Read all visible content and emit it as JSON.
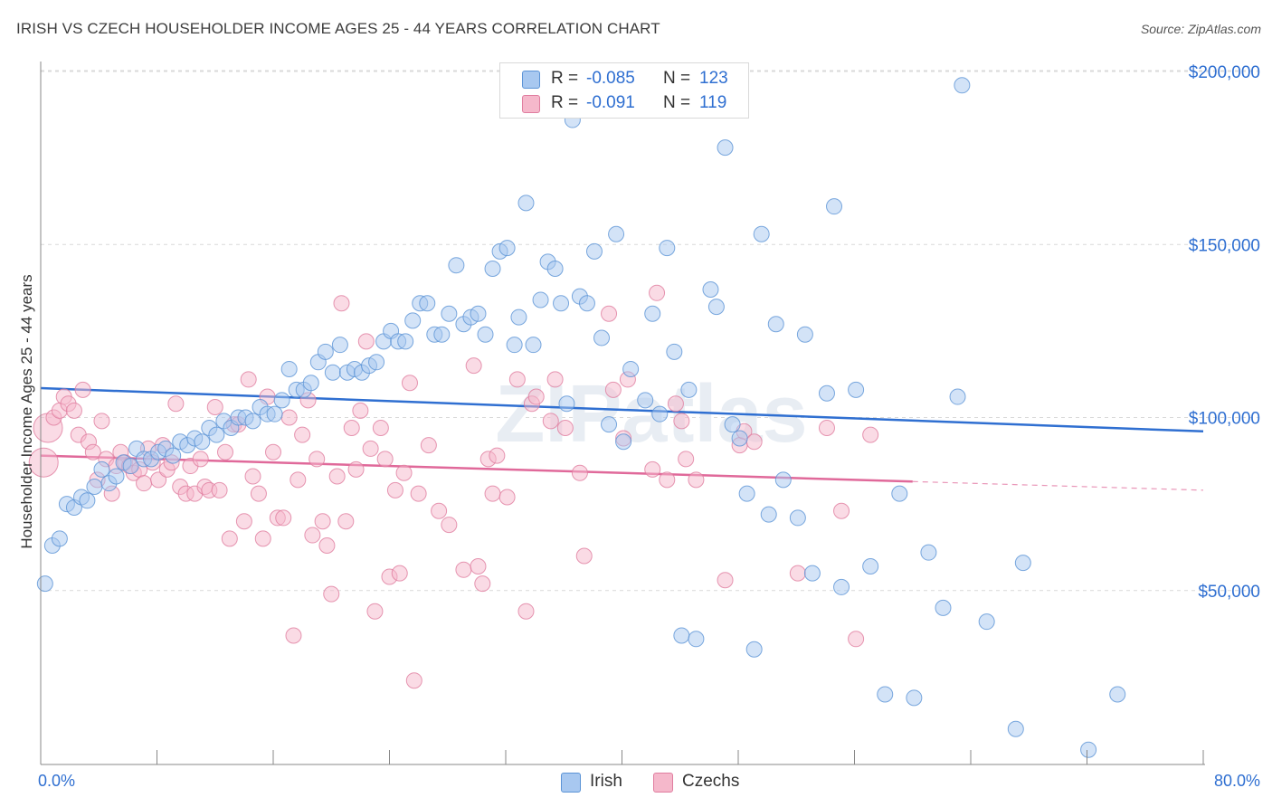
{
  "title": "IRISH VS CZECH HOUSEHOLDER INCOME AGES 25 - 44 YEARS CORRELATION CHART",
  "source": "Source: ZipAtlas.com",
  "watermark": "ZIPatlas",
  "legend_top": {
    "rows": [
      {
        "r_label": "R =",
        "r_value": "-0.085",
        "n_label": "N =",
        "n_value": "123",
        "color": "#a8c8f0"
      },
      {
        "r_label": "R =",
        "r_value": "-0.091",
        "n_label": "N =",
        "n_value": "119",
        "color": "#f5b8cb"
      }
    ]
  },
  "legend_bottom": [
    {
      "label": "Irish",
      "color": "#a8c8f0"
    },
    {
      "label": "Czechs",
      "color": "#f5b8cb"
    }
  ],
  "colors": {
    "irish_fill": "#a8c8f0",
    "irish_stroke": "#5b93d6",
    "irish_line": "#2f6fd1",
    "czech_fill": "#f5b8cb",
    "czech_stroke": "#e07d9f",
    "czech_line": "#e0699a",
    "axis_text": "#2f6fd1",
    "grid": "#d9d9d9"
  },
  "chart_data": {
    "type": "scatter",
    "title": "IRISH VS CZECH HOUSEHOLDER INCOME AGES 25 - 44 YEARS CORRELATION CHART",
    "xlabel": "",
    "ylabel": "Householder Income Ages 25 - 44 years",
    "x_tick_labels": [
      "0.0%",
      "80.0%"
    ],
    "xlim": [
      0,
      80
    ],
    "ylim": [
      0,
      205000
    ],
    "y_ticks": [
      50000,
      100000,
      150000,
      200000
    ],
    "y_tick_labels": [
      "$50,000",
      "$100,000",
      "$150,000",
      "$200,000"
    ],
    "grid": true,
    "legend_position": "top-center",
    "series": [
      {
        "name": "Irish",
        "trend": {
          "x": [
            0,
            80
          ],
          "y": [
            108500,
            96000
          ]
        },
        "points": [
          [
            0.3,
            52000
          ],
          [
            0.8,
            63000
          ],
          [
            1.3,
            65000
          ],
          [
            1.8,
            75000
          ],
          [
            2.3,
            74000
          ],
          [
            2.8,
            77000
          ],
          [
            3.2,
            76000
          ],
          [
            3.7,
            80000
          ],
          [
            4.2,
            85000
          ],
          [
            4.7,
            81000
          ],
          [
            5.2,
            83000
          ],
          [
            5.7,
            87000
          ],
          [
            6.2,
            86000
          ],
          [
            6.6,
            91000
          ],
          [
            7.1,
            88000
          ],
          [
            7.6,
            88000
          ],
          [
            8.1,
            90000
          ],
          [
            8.6,
            91000
          ],
          [
            9.1,
            89000
          ],
          [
            9.6,
            93000
          ],
          [
            10.1,
            92000
          ],
          [
            10.6,
            94000
          ],
          [
            11.1,
            93000
          ],
          [
            11.6,
            97000
          ],
          [
            12.1,
            95000
          ],
          [
            12.6,
            99000
          ],
          [
            13.1,
            97000
          ],
          [
            13.6,
            100000
          ],
          [
            14.1,
            100000
          ],
          [
            14.6,
            99000
          ],
          [
            15.1,
            103000
          ],
          [
            15.6,
            101000
          ],
          [
            16.1,
            101000
          ],
          [
            16.6,
            105000
          ],
          [
            17.1,
            114000
          ],
          [
            17.6,
            108000
          ],
          [
            18.1,
            108000
          ],
          [
            18.6,
            110000
          ],
          [
            19.1,
            116000
          ],
          [
            19.6,
            119000
          ],
          [
            20.1,
            113000
          ],
          [
            20.6,
            121000
          ],
          [
            21.1,
            113000
          ],
          [
            21.6,
            114000
          ],
          [
            22.1,
            113000
          ],
          [
            22.6,
            115000
          ],
          [
            23.1,
            116000
          ],
          [
            23.6,
            122000
          ],
          [
            24.1,
            125000
          ],
          [
            24.6,
            122000
          ],
          [
            25.1,
            122000
          ],
          [
            25.6,
            128000
          ],
          [
            26.1,
            133000
          ],
          [
            26.6,
            133000
          ],
          [
            27.1,
            124000
          ],
          [
            27.6,
            124000
          ],
          [
            28.1,
            130000
          ],
          [
            28.6,
            144000
          ],
          [
            29.1,
            127000
          ],
          [
            29.6,
            129000
          ],
          [
            30.1,
            130000
          ],
          [
            30.6,
            124000
          ],
          [
            31.1,
            143000
          ],
          [
            31.6,
            148000
          ],
          [
            32.1,
            149000
          ],
          [
            32.6,
            121000
          ],
          [
            32.9,
            129000
          ],
          [
            33.4,
            162000
          ],
          [
            33.9,
            121000
          ],
          [
            34.4,
            134000
          ],
          [
            34.9,
            145000
          ],
          [
            35.4,
            143000
          ],
          [
            35.8,
            133000
          ],
          [
            36.2,
            104000
          ],
          [
            36.6,
            186000
          ],
          [
            37.1,
            135000
          ],
          [
            37.6,
            133000
          ],
          [
            38.1,
            148000
          ],
          [
            38.6,
            123000
          ],
          [
            39.1,
            98000
          ],
          [
            39.6,
            153000
          ],
          [
            40.1,
            93000
          ],
          [
            40.6,
            114000
          ],
          [
            41.1,
            193000
          ],
          [
            41.6,
            105000
          ],
          [
            42.1,
            130000
          ],
          [
            42.6,
            101000
          ],
          [
            43.1,
            149000
          ],
          [
            43.6,
            119000
          ],
          [
            44.1,
            37000
          ],
          [
            44.6,
            108000
          ],
          [
            45.1,
            36000
          ],
          [
            46.1,
            137000
          ],
          [
            46.5,
            132000
          ],
          [
            47.1,
            178000
          ],
          [
            47.6,
            98000
          ],
          [
            48.1,
            94000
          ],
          [
            48.6,
            78000
          ],
          [
            49.1,
            33000
          ],
          [
            49.6,
            153000
          ],
          [
            50.1,
            72000
          ],
          [
            50.6,
            127000
          ],
          [
            51.1,
            82000
          ],
          [
            52.1,
            71000
          ],
          [
            52.6,
            124000
          ],
          [
            53.1,
            55000
          ],
          [
            54.1,
            107000
          ],
          [
            54.6,
            161000
          ],
          [
            55.1,
            51000
          ],
          [
            56.1,
            108000
          ],
          [
            57.1,
            57000
          ],
          [
            58.1,
            20000
          ],
          [
            59.1,
            78000
          ],
          [
            60.1,
            19000
          ],
          [
            61.1,
            61000
          ],
          [
            62.1,
            45000
          ],
          [
            63.1,
            106000
          ],
          [
            63.4,
            196000
          ],
          [
            65.1,
            41000
          ],
          [
            67.1,
            10000
          ],
          [
            67.6,
            58000
          ],
          [
            72.1,
            4000
          ],
          [
            74.1,
            20000
          ]
        ]
      },
      {
        "name": "Czechs",
        "trend": {
          "x": [
            0,
            60
          ],
          "y": [
            89000,
            81500
          ]
        },
        "points": [
          [
            0.2,
            87000
          ],
          [
            0.5,
            97000
          ],
          [
            0.9,
            100000
          ],
          [
            1.3,
            102000
          ],
          [
            1.6,
            106000
          ],
          [
            1.9,
            104000
          ],
          [
            2.3,
            102000
          ],
          [
            2.6,
            95000
          ],
          [
            2.9,
            108000
          ],
          [
            3.3,
            93000
          ],
          [
            3.6,
            90000
          ],
          [
            3.9,
            82000
          ],
          [
            4.2,
            99000
          ],
          [
            4.5,
            88000
          ],
          [
            4.9,
            78000
          ],
          [
            5.2,
            86000
          ],
          [
            5.5,
            90000
          ],
          [
            5.8,
            87000
          ],
          [
            6.1,
            86000
          ],
          [
            6.4,
            84000
          ],
          [
            6.8,
            85000
          ],
          [
            7.1,
            81000
          ],
          [
            7.4,
            91000
          ],
          [
            7.7,
            87000
          ],
          [
            8.1,
            82000
          ],
          [
            8.4,
            92000
          ],
          [
            8.7,
            85000
          ],
          [
            9.0,
            87000
          ],
          [
            9.3,
            104000
          ],
          [
            9.6,
            80000
          ],
          [
            10.0,
            78000
          ],
          [
            10.3,
            86000
          ],
          [
            10.6,
            78000
          ],
          [
            11.0,
            88000
          ],
          [
            11.3,
            80000
          ],
          [
            11.6,
            79000
          ],
          [
            12.0,
            103000
          ],
          [
            12.3,
            79000
          ],
          [
            12.7,
            90000
          ],
          [
            13.0,
            65000
          ],
          [
            13.3,
            98000
          ],
          [
            13.6,
            98000
          ],
          [
            14.0,
            70000
          ],
          [
            14.3,
            111000
          ],
          [
            14.6,
            83000
          ],
          [
            15.0,
            78000
          ],
          [
            15.3,
            65000
          ],
          [
            15.6,
            106000
          ],
          [
            16.0,
            90000
          ],
          [
            16.3,
            71000
          ],
          [
            16.7,
            71000
          ],
          [
            17.1,
            100000
          ],
          [
            17.4,
            37000
          ],
          [
            17.7,
            82000
          ],
          [
            18.0,
            95000
          ],
          [
            18.4,
            105000
          ],
          [
            18.7,
            66000
          ],
          [
            19.0,
            88000
          ],
          [
            19.4,
            70000
          ],
          [
            19.7,
            63000
          ],
          [
            20.0,
            49000
          ],
          [
            20.4,
            83000
          ],
          [
            20.7,
            133000
          ],
          [
            21.0,
            70000
          ],
          [
            21.4,
            97000
          ],
          [
            21.7,
            85000
          ],
          [
            22.0,
            102000
          ],
          [
            22.4,
            122000
          ],
          [
            22.7,
            91000
          ],
          [
            23.0,
            44000
          ],
          [
            23.4,
            97000
          ],
          [
            23.7,
            88000
          ],
          [
            24.0,
            54000
          ],
          [
            24.4,
            79000
          ],
          [
            24.7,
            55000
          ],
          [
            25.0,
            84000
          ],
          [
            25.4,
            110000
          ],
          [
            25.7,
            24000
          ],
          [
            26.0,
            78000
          ],
          [
            26.7,
            92000
          ],
          [
            27.4,
            73000
          ],
          [
            28.1,
            69000
          ],
          [
            29.1,
            56000
          ],
          [
            29.8,
            115000
          ],
          [
            30.1,
            57000
          ],
          [
            30.4,
            52000
          ],
          [
            30.8,
            88000
          ],
          [
            31.1,
            78000
          ],
          [
            31.4,
            89000
          ],
          [
            32.1,
            77000
          ],
          [
            32.8,
            111000
          ],
          [
            33.4,
            44000
          ],
          [
            33.8,
            104000
          ],
          [
            34.1,
            106000
          ],
          [
            35.1,
            99000
          ],
          [
            35.4,
            111000
          ],
          [
            36.1,
            97000
          ],
          [
            37.1,
            84000
          ],
          [
            37.4,
            60000
          ],
          [
            39.1,
            130000
          ],
          [
            39.4,
            108000
          ],
          [
            40.1,
            94000
          ],
          [
            40.4,
            111000
          ],
          [
            42.1,
            85000
          ],
          [
            42.4,
            136000
          ],
          [
            43.1,
            82000
          ],
          [
            43.7,
            104000
          ],
          [
            44.1,
            99000
          ],
          [
            44.4,
            88000
          ],
          [
            45.1,
            82000
          ],
          [
            47.1,
            53000
          ],
          [
            48.1,
            92000
          ],
          [
            48.4,
            96000
          ],
          [
            49.1,
            93000
          ],
          [
            52.1,
            55000
          ],
          [
            54.1,
            97000
          ],
          [
            55.1,
            73000
          ],
          [
            56.1,
            36000
          ],
          [
            57.1,
            95000
          ]
        ]
      }
    ]
  }
}
